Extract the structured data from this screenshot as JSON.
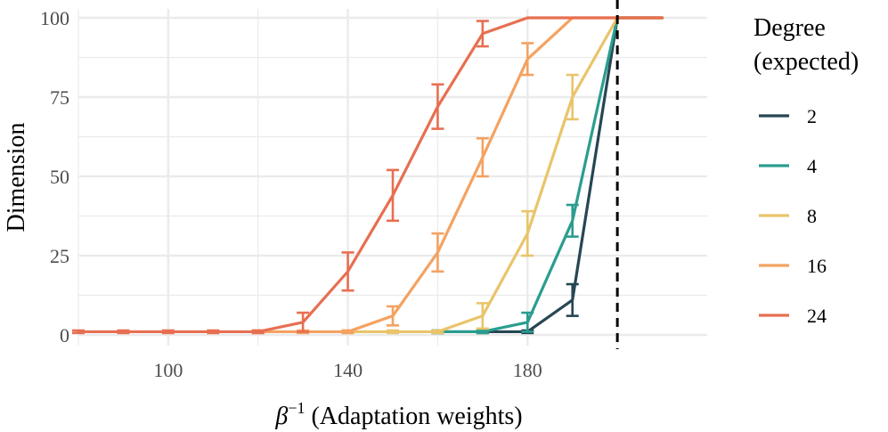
{
  "chart_data": {
    "type": "line",
    "xlabel_symbol": "β",
    "xlabel_exponent": "−1",
    "xlabel_text": " (Adaptation weights)",
    "ylabel": "Dimension",
    "xlim": [
      80,
      220
    ],
    "ylim": [
      0,
      100
    ],
    "x_ticks": [
      100,
      140,
      180
    ],
    "y_ticks": [
      0,
      25,
      50,
      75,
      100
    ],
    "vline_x": 200,
    "grid": true,
    "legend": {
      "title_lines": [
        "Degree",
        "(expected)"
      ],
      "position": "right"
    },
    "series": [
      {
        "name": "2",
        "color": "#264653",
        "x": [
          160,
          170,
          180,
          190,
          200,
          210
        ],
        "y": [
          1,
          1,
          1,
          11,
          100,
          100
        ],
        "err": [
          0,
          0,
          0,
          5,
          0,
          0
        ]
      },
      {
        "name": "4",
        "color": "#2a9d8f",
        "x": [
          160,
          170,
          180,
          190,
          200,
          210
        ],
        "y": [
          1,
          1,
          4,
          36,
          100,
          100
        ],
        "err": [
          0,
          0,
          3,
          5,
          0,
          0
        ]
      },
      {
        "name": "8",
        "color": "#e9c46a",
        "x": [
          140,
          150,
          160,
          170,
          180,
          190,
          200,
          210
        ],
        "y": [
          1,
          1,
          1,
          6,
          32,
          75,
          100,
          100
        ],
        "err": [
          0,
          0,
          0,
          4,
          7,
          7,
          0,
          0
        ]
      },
      {
        "name": "16",
        "color": "#f4a261",
        "x": [
          120,
          130,
          140,
          150,
          160,
          170,
          180,
          190,
          200,
          210
        ],
        "y": [
          1,
          1,
          1,
          6,
          26,
          56,
          87,
          100,
          100,
          100
        ],
        "err": [
          0,
          0,
          0,
          3,
          6,
          6,
          5,
          0,
          0,
          0
        ]
      },
      {
        "name": "24",
        "color": "#e76f51",
        "x": [
          80,
          90,
          100,
          110,
          120,
          130,
          140,
          150,
          160,
          170,
          180,
          190,
          200,
          210
        ],
        "y": [
          1,
          1,
          1,
          1,
          1,
          4,
          20,
          44,
          72,
          95,
          100,
          100,
          100,
          100
        ],
        "err": [
          0,
          0,
          0,
          0,
          0,
          3,
          6,
          8,
          7,
          4,
          0,
          0,
          0,
          0
        ]
      }
    ]
  }
}
